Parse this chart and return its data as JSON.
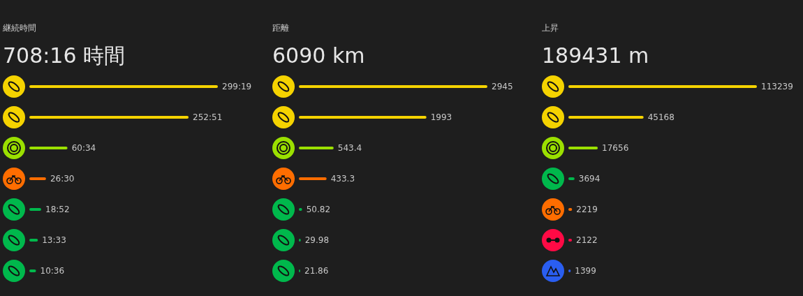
{
  "chart_data": [
    {
      "type": "bar",
      "orientation": "horizontal",
      "title": "継続時間",
      "subtitle": "708:16 時間",
      "categories": [
        null,
        null,
        null,
        null,
        null,
        null,
        null
      ],
      "values": [
        299.32,
        252.85,
        60.57,
        26.5,
        18.87,
        13.55,
        10.6
      ],
      "value_labels": [
        "299:19",
        "252:51",
        "60:34",
        "26:30",
        "18:52",
        "13:33",
        "10:36"
      ],
      "colors": [
        "#f5d300",
        "#f5d300",
        "#9be000",
        "#ff6d00",
        "#00b84c",
        "#00b84c",
        "#00b84c"
      ]
    },
    {
      "type": "bar",
      "orientation": "horizontal",
      "title": "距離",
      "subtitle": "6090 km",
      "categories": [
        null,
        null,
        null,
        null,
        null,
        null,
        null
      ],
      "values": [
        2945,
        1993,
        543.4,
        433.3,
        50.82,
        29.98,
        21.86
      ],
      "data_labels": true,
      "colors": [
        "#f5d300",
        "#f5d300",
        "#9be000",
        "#ff6d00",
        "#00b84c",
        "#00b84c",
        "#00b84c"
      ]
    },
    {
      "type": "bar",
      "orientation": "horizontal",
      "title": "上昇",
      "subtitle": "189431 m",
      "categories": [
        null,
        null,
        null,
        null,
        null,
        null,
        null
      ],
      "values": [
        113239,
        45168,
        17656,
        3694,
        2219,
        2122,
        1399
      ],
      "data_labels": true,
      "colors": [
        "#f5d300",
        "#f5d300",
        "#9be000",
        "#00b84c",
        "#ff6d00",
        "#ff0a45",
        "#2a5ef0"
      ]
    }
  ]
}
